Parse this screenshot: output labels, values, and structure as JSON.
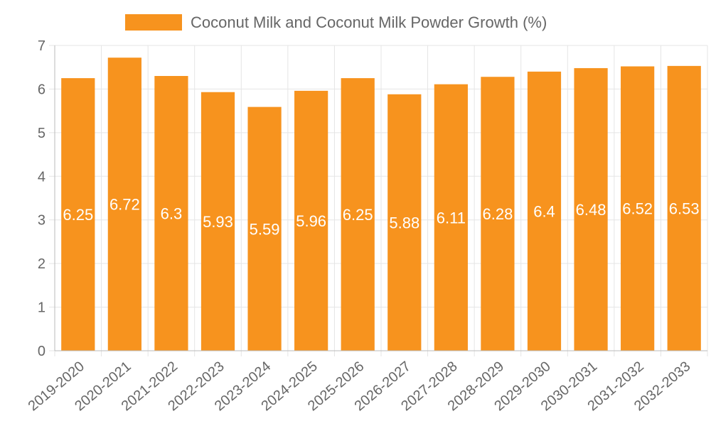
{
  "chart_data": {
    "type": "bar",
    "title": "",
    "legend": {
      "label": "Coconut Milk and Coconut Milk Powder Growth (%)",
      "position": "top"
    },
    "categories": [
      "2019-2020",
      "2020-2021",
      "2021-2022",
      "2022-2023",
      "2023-2024",
      "2024-2025",
      "2025-2026",
      "2026-2027",
      "2027-2028",
      "2028-2029",
      "2029-2030",
      "2030-2031",
      "2031-2032",
      "2032-2033"
    ],
    "values": [
      6.25,
      6.72,
      6.3,
      5.93,
      5.59,
      5.96,
      6.25,
      5.88,
      6.11,
      6.28,
      6.4,
      6.48,
      6.52,
      6.53
    ],
    "value_labels": [
      "6.25",
      "6.72",
      "6.3",
      "5.93",
      "5.59",
      "5.96",
      "6.25",
      "5.88",
      "6.11",
      "6.28",
      "6.4",
      "6.48",
      "6.52",
      "6.53"
    ],
    "xlabel": "",
    "ylabel": "",
    "ylim": [
      0,
      7
    ],
    "yticks": [
      "0",
      "1",
      "2",
      "3",
      "4",
      "5",
      "6",
      "7"
    ],
    "grid": true,
    "colors": {
      "bar": "#F7931E",
      "grid": "#e5e5e5",
      "axis": "#666666",
      "label": "#ffffff"
    }
  }
}
